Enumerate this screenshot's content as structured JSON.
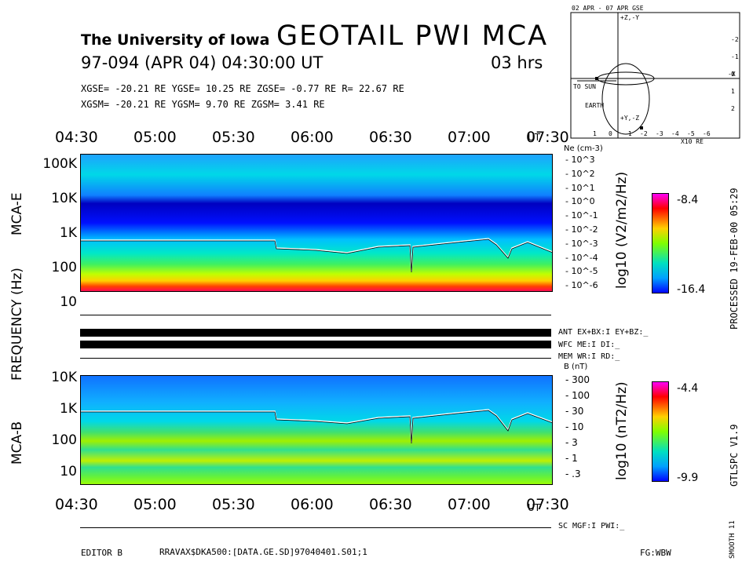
{
  "header": {
    "university": "The University of Iowa",
    "title": "GEOTAIL PWI MCA",
    "date_line": "97-094 (APR 04) 04:30:00 UT",
    "duration": "03 hrs",
    "gse_line": "XGSE= -20.21 RE   YGSE=  10.25 RE   ZGSE=  -0.77 RE   R= 22.67 RE",
    "gsm_line": "XGSM= -20.21 RE   YGSM=   9.70 RE   ZGSM=   3.41 RE"
  },
  "orbit": {
    "title": "02 APR - 07 APR  GSE",
    "to_sun": "TO SUN",
    "earth": "EARTH",
    "x_unit": "X10 RE",
    "axis_x": "-X",
    "axis_z_top": "+Z,-Y",
    "axis_z_bot": "+Y,-Z",
    "x_ticks": [
      "1",
      "0",
      "-1",
      "-2",
      "-3",
      "-4",
      "-5",
      "-6"
    ],
    "y_ticks": [
      "-2",
      "-1",
      "0",
      "1",
      "2"
    ]
  },
  "time_axis": [
    "04:30",
    "05:00",
    "05:30",
    "06:00",
    "06:30",
    "07:00",
    "07:30"
  ],
  "ut_label": "UT",
  "panel_e": {
    "label": "MCA-E",
    "freq_ticks": [
      "100K",
      "10K",
      "1K",
      "100",
      "10"
    ],
    "ne_label": "Ne (cm-3)",
    "ne_ticks": [
      "10^3",
      "10^2",
      "10^1",
      "10^0",
      "10^-1",
      "10^-2",
      "10^-3",
      "10^-4",
      "10^-5",
      "10^-6"
    ],
    "cbar_unit": "log10 (V2/m2/Hz)",
    "cbar_max": "-8.4",
    "cbar_min": "-16.4"
  },
  "panel_b": {
    "label": "MCA-B",
    "freq_ticks": [
      "10K",
      "1K",
      "100",
      "10"
    ],
    "b_label": "B (nT)",
    "b_ticks": [
      "300",
      "100",
      "30",
      "10",
      "3",
      "1",
      ".3"
    ],
    "cbar_unit": "log10 (nT2/Hz)",
    "cbar_max": "-4.4",
    "cbar_min": "-9.9"
  },
  "frequency_label": "FREQUENCY (Hz)",
  "status": {
    "ant": "ANT EX+BX:I EY+BZ:_",
    "wfc": "WFC ME:I    DI:_",
    "mem": "MEM WR:I    RD:_",
    "sc": "SC MGF:I    PWI:_"
  },
  "right_margin": {
    "processed": "PROCESSED 19-FEB-00  05:29",
    "version": "GTLSPC   V1.9",
    "smooth": "SMOOTH 11"
  },
  "footer": {
    "editor": "EDITOR B",
    "file": "RRAVAX$DKA500:[DATA.GE.SD]97040401.S01;1",
    "fg": "FG:WBW"
  },
  "colors": {
    "spectrum": [
      "#0000ff",
      "#0060ff",
      "#00c0ff",
      "#00e0c0",
      "#40ff40",
      "#c0ff00",
      "#ffe000",
      "#ff8000",
      "#ff0000",
      "#ff00ff"
    ]
  }
}
